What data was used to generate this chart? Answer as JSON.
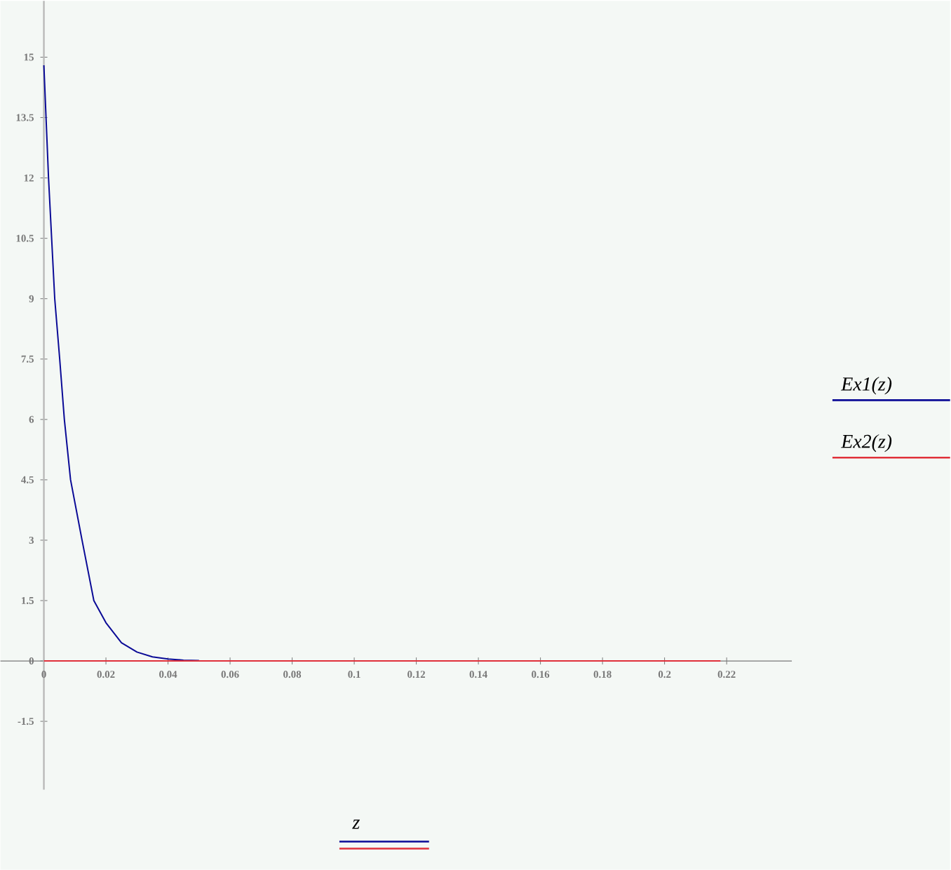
{
  "chart_data": {
    "type": "line",
    "xlabel": "z",
    "legend": "right",
    "xlim": [
      -0.014,
      0.241
    ],
    "ylim": [
      -3.2,
      16.4
    ],
    "xticks": [
      0,
      0.02,
      0.04,
      0.06,
      0.08,
      0.1,
      0.12,
      0.14,
      0.16,
      0.18,
      0.2,
      0.22
    ],
    "yticks": [
      -1.5,
      0,
      1.5,
      3,
      4.5,
      6,
      7.5,
      9,
      10.5,
      12,
      13.5,
      15
    ],
    "series": [
      {
        "name": "Ex1(z)",
        "color": "#0a0a96",
        "x": [
          0,
          0.0015,
          0.0035,
          0.0051,
          0.0066,
          0.0086,
          0.0123,
          0.0161,
          0.02,
          0.025,
          0.03,
          0.035,
          0.04,
          0.045,
          0.05
        ],
        "values": [
          14.8,
          12,
          9,
          7.5,
          6,
          4.5,
          3,
          1.5,
          0.95,
          0.45,
          0.22,
          0.1,
          0.05,
          0.02,
          0.01
        ]
      },
      {
        "name": "Ex2(z)",
        "color": "#e0303a",
        "x": [
          0,
          0.218
        ],
        "values": [
          0,
          0
        ]
      }
    ]
  }
}
